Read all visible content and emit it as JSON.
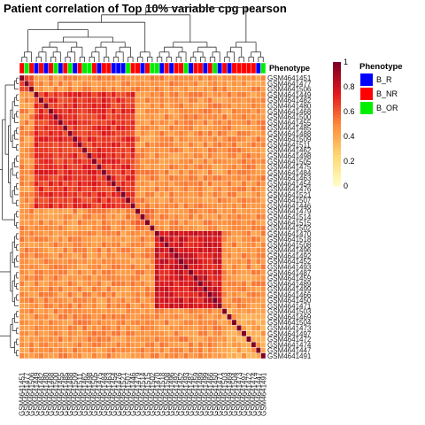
{
  "chart_data": {
    "type": "heatmap",
    "title": "Patient correlation of Top 10% variable cpg pearson",
    "annotation_label": "Phenotype",
    "colorbar": {
      "ticks": [
        0,
        0.2,
        0.4,
        0.6,
        0.8,
        1
      ],
      "tick_labels": [
        "0",
        "0.2",
        "0.4",
        "0.6",
        "0.8",
        "1"
      ],
      "colors": [
        "#FFFFCC",
        "#FED976",
        "#FD8D3C",
        "#E31A1C",
        "#800026"
      ]
    },
    "legend": {
      "title": "Phenotype",
      "items": [
        {
          "label": "B_R",
          "color": "#0000FF"
        },
        {
          "label": "B_NR",
          "color": "#FF0000"
        },
        {
          "label": "B_OR",
          "color": "#00EE00"
        }
      ]
    },
    "samples": [
      "GSM4641451",
      "GSM4641477",
      "GSM4641506",
      "GSM4641449",
      "GSM4641482",
      "GSM4641480",
      "GSM4641468",
      "GSM4641500",
      "GSM4641455",
      "GSM4641485",
      "GSM4641488",
      "GSM4641509",
      "GSM4641511",
      "GSM4641462",
      "GSM4641498",
      "GSM4641505",
      "GSM4641475",
      "GSM4641484",
      "GSM4641463",
      "GSM4641454",
      "GSM4641476",
      "GSM4641521",
      "GSM4641507",
      "GSM4641446",
      "GSM4641479",
      "GSM4641514",
      "GSM4641515",
      "GSM4641502",
      "GSM4641470",
      "GSM4641518",
      "GSM4641508",
      "GSM4641496",
      "GSM4641492",
      "GSM4641452",
      "GSM4641493",
      "GSM4641487",
      "GSM4641459",
      "GSM4641489",
      "GSM4641499",
      "GSM4641466",
      "GSM4641450",
      "GSM4641471",
      "GSM4641503",
      "GSM4641469",
      "GSM4641504",
      "GSM4641473",
      "GSM4641497",
      "GSM4641472",
      "GSM4641474",
      "GSM4641447",
      "GSM4641491"
    ],
    "phenotype": [
      "B_NR",
      "B_OR",
      "B_NR",
      "B_R",
      "B_NR",
      "B_R",
      "B_NR",
      "B_OR",
      "B_R",
      "B_NR",
      "B_OR",
      "B_R",
      "B_NR",
      "B_OR",
      "B_OR",
      "B_NR",
      "B_R",
      "B_NR",
      "B_NR",
      "B_R",
      "B_R",
      "B_R",
      "B_OR",
      "B_NR",
      "B_NR",
      "B_R",
      "B_NR",
      "B_OR",
      "B_OR",
      "B_R",
      "B_NR",
      "B_R",
      "B_NR",
      "B_NR",
      "B_OR",
      "B_R",
      "B_NR",
      "B_NR",
      "B_R",
      "B_NR",
      "B_OR",
      "B_R",
      "B_NR",
      "B_R",
      "B_NR",
      "B_NR",
      "B_NR",
      "B_NR",
      "B_NR",
      "B_R",
      "B_OR"
    ],
    "blocks": [
      {
        "from": 0,
        "to": 2,
        "within": 0.72
      },
      {
        "from": 3,
        "to": 23,
        "within": 0.7
      },
      {
        "from": 24,
        "to": 27,
        "within": 0.55
      },
      {
        "from": 28,
        "to": 41,
        "within": 0.78
      },
      {
        "from": 42,
        "to": 50,
        "within": 0.42
      }
    ],
    "between_blocks": 0.48,
    "diagonal": 1.0
  }
}
